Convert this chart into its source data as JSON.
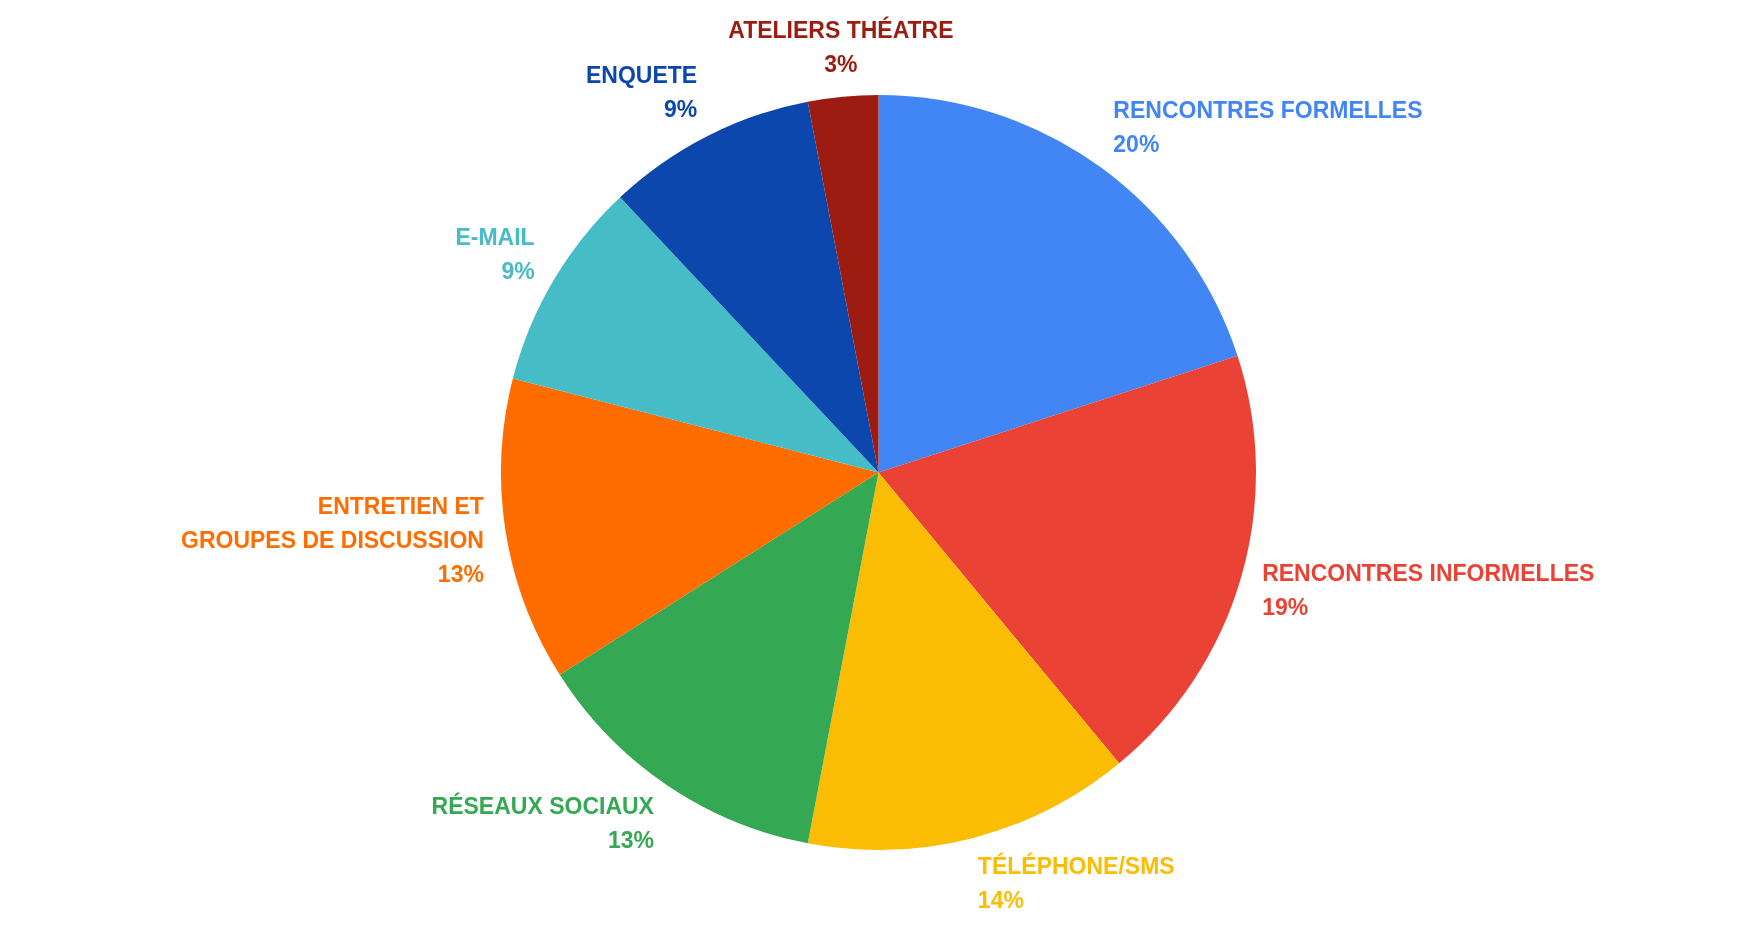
{
  "chart_data": {
    "type": "pie",
    "categories": [
      "RENCONTRES FORMELLES",
      "RENCONTRES INFORMELLES",
      "TÉLÉPHONE/SMS",
      "RÉSEAUX SOCIAUX",
      "ENTRETIEN ET\nGROUPES DE DISCUSSION",
      "E-MAIL",
      "ENQUETE",
      "ATELIERS THÉATRE"
    ],
    "values": [
      20,
      19,
      14,
      13,
      13,
      9,
      9,
      3
    ],
    "value_labels": [
      "20%",
      "19%",
      "14%",
      "13%",
      "13%",
      "9%",
      "9%",
      "3%"
    ],
    "colors": [
      "#4285f4",
      "#ea4335",
      "#fbbc04",
      "#34a853",
      "#ff6d01",
      "#46bdc6",
      "#0b47ad",
      "#9c1c12"
    ],
    "legend": false
  }
}
